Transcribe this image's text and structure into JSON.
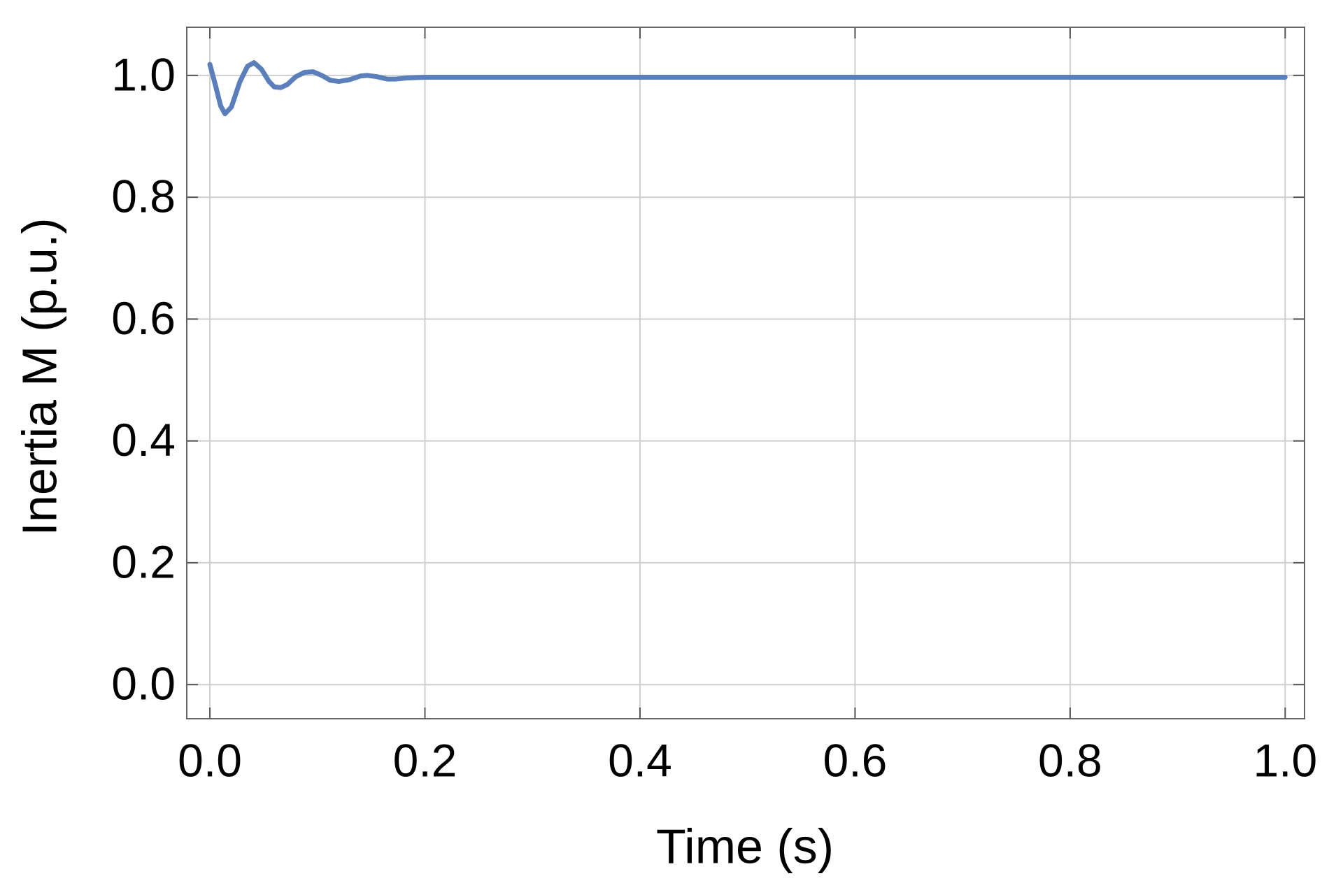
{
  "chart_data": {
    "type": "line",
    "x_label": "Time (s)",
    "y_label": "Inertia M (p.u.)",
    "x": [
      0,
      0.005,
      0.01,
      0.014,
      0.02,
      0.028,
      0.035,
      0.041,
      0.048,
      0.055,
      0.06,
      0.066,
      0.072,
      0.08,
      0.088,
      0.096,
      0.104,
      0.112,
      0.12,
      0.13,
      0.14,
      0.146,
      0.155,
      0.165,
      0.173,
      0.185,
      0.2,
      0.3,
      0.5,
      0.7,
      0.9,
      1.0
    ],
    "series": [
      {
        "name": "Inertia M",
        "color": "#5b7fba",
        "values": [
          1.018,
          0.985,
          0.95,
          0.937,
          0.948,
          0.99,
          1.015,
          1.021,
          1.01,
          0.99,
          0.981,
          0.98,
          0.985,
          0.998,
          1.005,
          1.006,
          1.0,
          0.992,
          0.99,
          0.993,
          0.999,
          1.0,
          0.998,
          0.994,
          0.994,
          0.996,
          0.997,
          0.997,
          0.997,
          0.997,
          0.997,
          0.997
        ]
      }
    ],
    "xlim": [
      -0.0215,
      1.018
    ],
    "ylim": [
      -0.056,
      1.079
    ],
    "xticks": [
      {
        "value": 0,
        "label": "0.0"
      },
      0.2,
      0.4,
      0.6,
      0.8,
      {
        "value": 1,
        "label": "1.0"
      }
    ],
    "yticks": [
      {
        "value": 0,
        "label": "0.0"
      },
      0.2,
      0.4,
      0.6,
      0.8,
      {
        "value": 1,
        "label": "1.0"
      }
    ],
    "grid": true
  }
}
